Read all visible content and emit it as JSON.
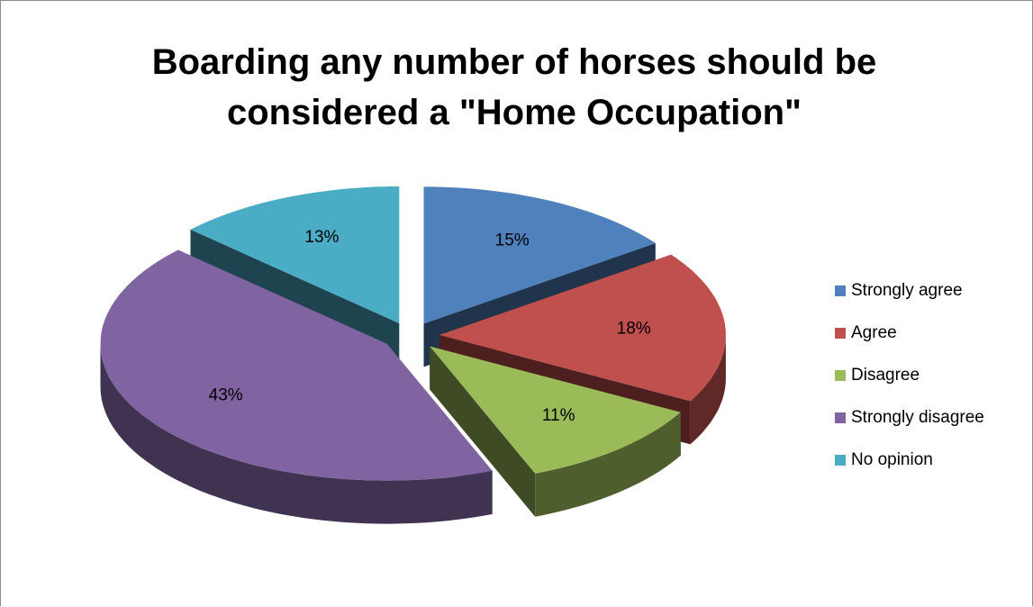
{
  "chart_data": {
    "type": "pie3d",
    "title": "Boarding any number of horses should be considered a \"Home Occupation\"",
    "categories": [
      "Strongly agree",
      "Agree",
      "Disagree",
      "Strongly disagree",
      "No opinion"
    ],
    "values": [
      15,
      18,
      11,
      43,
      13
    ],
    "value_labels": [
      "15%",
      "18%",
      "11%",
      "43%",
      "13%"
    ],
    "colors": [
      "#4f81bd",
      "#c0504d",
      "#9bbb59",
      "#8064a2",
      "#4bacc6"
    ],
    "legend": "right"
  }
}
